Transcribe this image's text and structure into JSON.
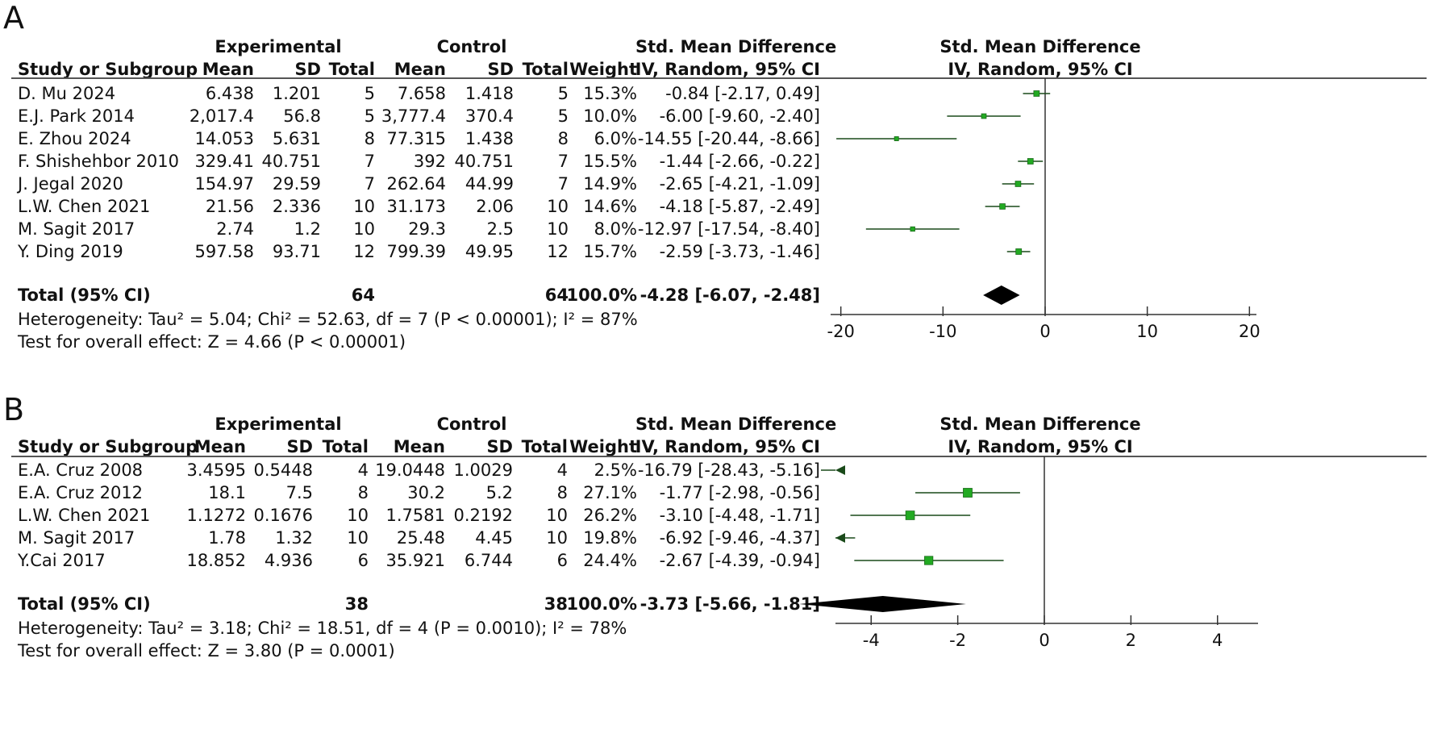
{
  "chart_data": [
    {
      "type": "forest",
      "panel_label": "A",
      "header": {
        "experimental": "Experimental",
        "control": "Control",
        "effect_title": "Std. Mean Difference",
        "columns": [
          "Study or Subgroup",
          "Mean",
          "SD",
          "Total",
          "Mean",
          "SD",
          "Total",
          "Weight",
          "IV, Random, 95% CI"
        ],
        "plot_title": "Std. Mean Difference",
        "plot_subtitle": "IV, Random, 95% CI"
      },
      "studies": [
        {
          "study": "D. Mu 2024",
          "e_mean": "6.438",
          "e_sd": "1.201",
          "e_total": "5",
          "c_mean": "7.658",
          "c_sd": "1.418",
          "c_total": "5",
          "weight": "15.3%",
          "ci_text": "-0.84 [-2.17, 0.49]",
          "est": -0.84,
          "lo": -2.17,
          "hi": 0.49
        },
        {
          "study": "E.J. Park 2014",
          "e_mean": "2,017.4",
          "e_sd": "56.8",
          "e_total": "5",
          "c_mean": "3,777.4",
          "c_sd": "370.4",
          "c_total": "5",
          "weight": "10.0%",
          "ci_text": "-6.00 [-9.60, -2.40]",
          "est": -6.0,
          "lo": -9.6,
          "hi": -2.4
        },
        {
          "study": "E. Zhou 2024",
          "e_mean": "14.053",
          "e_sd": "5.631",
          "e_total": "8",
          "c_mean": "77.315",
          "c_sd": "1.438",
          "c_total": "8",
          "weight": "6.0%",
          "ci_text": "-14.55 [-20.44, -8.66]",
          "est": -14.55,
          "lo": -20.44,
          "hi": -8.66
        },
        {
          "study": "F. Shishehbor 2010",
          "e_mean": "329.41",
          "e_sd": "40.751",
          "e_total": "7",
          "c_mean": "392",
          "c_sd": "40.751",
          "c_total": "7",
          "weight": "15.5%",
          "ci_text": "-1.44 [-2.66, -0.22]",
          "est": -1.44,
          "lo": -2.66,
          "hi": -0.22
        },
        {
          "study": "J. Jegal 2020",
          "e_mean": "154.97",
          "e_sd": "29.59",
          "e_total": "7",
          "c_mean": "262.64",
          "c_sd": "44.99",
          "c_total": "7",
          "weight": "14.9%",
          "ci_text": "-2.65 [-4.21, -1.09]",
          "est": -2.65,
          "lo": -4.21,
          "hi": -1.09
        },
        {
          "study": "L.W. Chen 2021",
          "e_mean": "21.56",
          "e_sd": "2.336",
          "e_total": "10",
          "c_mean": "31.173",
          "c_sd": "2.06",
          "c_total": "10",
          "weight": "14.6%",
          "ci_text": "-4.18 [-5.87, -2.49]",
          "est": -4.18,
          "lo": -5.87,
          "hi": -2.49
        },
        {
          "study": "M. Sagit 2017",
          "e_mean": "2.74",
          "e_sd": "1.2",
          "e_total": "10",
          "c_mean": "29.3",
          "c_sd": "2.5",
          "c_total": "10",
          "weight": "8.0%",
          "ci_text": "-12.97 [-17.54, -8.40]",
          "est": -12.97,
          "lo": -17.54,
          "hi": -8.4
        },
        {
          "study": "Y. Ding 2019",
          "e_mean": "597.58",
          "e_sd": "93.71",
          "e_total": "12",
          "c_mean": "799.39",
          "c_sd": "49.95",
          "c_total": "12",
          "weight": "15.7%",
          "ci_text": "-2.59 [-3.73, -1.46]",
          "est": -2.59,
          "lo": -3.73,
          "hi": -1.46
        }
      ],
      "total": {
        "label": "Total (95% CI)",
        "e_total": "64",
        "c_total": "64",
        "weight": "100.0%",
        "ci_text": "-4.28 [-6.07, -2.48]",
        "est": -4.28,
        "lo": -6.07,
        "hi": -2.48
      },
      "heterogeneity": "Heterogeneity: Tau² = 5.04; Chi² = 52.63, df = 7 (P < 0.00001); I² = 87%",
      "overall_test": "Test for overall effect: Z = 4.66 (P < 0.00001)",
      "x_ticks": [
        -20,
        -10,
        0,
        10,
        20
      ],
      "x_tick_labels": [
        "-20",
        "-10",
        "0",
        "10",
        "20"
      ],
      "xlim": [
        -21,
        21
      ]
    },
    {
      "type": "forest",
      "panel_label": "B",
      "header": {
        "experimental": "Experimental",
        "control": "Control",
        "effect_title": "Std. Mean Difference",
        "columns": [
          "Study or Subgroup",
          "Mean",
          "SD",
          "Total",
          "Mean",
          "SD",
          "Total",
          "Weight",
          "IV, Random, 95% CI"
        ],
        "plot_title": "Std. Mean Difference",
        "plot_subtitle": "IV, Random, 95% CI"
      },
      "studies": [
        {
          "study": "E.A. Cruz 2008",
          "e_mean": "3.4595",
          "e_sd": "0.5448",
          "e_total": "4",
          "c_mean": "19.0448",
          "c_sd": "1.0029",
          "c_total": "4",
          "weight": "2.5%",
          "ci_text": "-16.79 [-28.43, -5.16]",
          "est": -16.79,
          "lo": -28.43,
          "hi": -5.16
        },
        {
          "study": "E.A. Cruz 2012",
          "e_mean": "18.1",
          "e_sd": "7.5",
          "e_total": "8",
          "c_mean": "30.2",
          "c_sd": "5.2",
          "c_total": "8",
          "weight": "27.1%",
          "ci_text": "-1.77 [-2.98, -0.56]",
          "est": -1.77,
          "lo": -2.98,
          "hi": -0.56
        },
        {
          "study": "L.W. Chen 2021",
          "e_mean": "1.1272",
          "e_sd": "0.1676",
          "e_total": "10",
          "c_mean": "1.7581",
          "c_sd": "0.2192",
          "c_total": "10",
          "weight": "26.2%",
          "ci_text": "-3.10 [-4.48, -1.71]",
          "est": -3.1,
          "lo": -4.48,
          "hi": -1.71
        },
        {
          "study": "M. Sagit 2017",
          "e_mean": "1.78",
          "e_sd": "1.32",
          "e_total": "10",
          "c_mean": "25.48",
          "c_sd": "4.45",
          "c_total": "10",
          "weight": "19.8%",
          "ci_text": "-6.92 [-9.46, -4.37]",
          "est": -6.92,
          "lo": -9.46,
          "hi": -4.37
        },
        {
          "study": "Y.Cai 2017",
          "e_mean": "18.852",
          "e_sd": "4.936",
          "e_total": "6",
          "c_mean": "35.921",
          "c_sd": "6.744",
          "c_total": "6",
          "weight": "24.4%",
          "ci_text": "-2.67 [-4.39, -0.94]",
          "est": -2.67,
          "lo": -4.39,
          "hi": -0.94
        }
      ],
      "total": {
        "label": "Total (95% CI)",
        "e_total": "38",
        "c_total": "38",
        "weight": "100.0%",
        "ci_text": "-3.73 [-5.66, -1.81]",
        "est": -3.73,
        "lo": -5.66,
        "hi": -1.81
      },
      "heterogeneity": "Heterogeneity: Tau² = 3.18; Chi² = 18.51, df = 4 (P = 0.0010); I² = 78%",
      "overall_test": "Test for overall effect: Z = 3.80 (P = 0.0001)",
      "x_ticks": [
        -4,
        -2,
        0,
        2,
        4
      ],
      "x_tick_labels": [
        "-4",
        "-2",
        "0",
        "2",
        "4"
      ],
      "xlim": [
        -4.75,
        4.75
      ]
    }
  ],
  "colors": {
    "marker": "#22aa22",
    "ci_line": "#1a4a1a",
    "diamond": "#000000",
    "axis": "#333333"
  }
}
